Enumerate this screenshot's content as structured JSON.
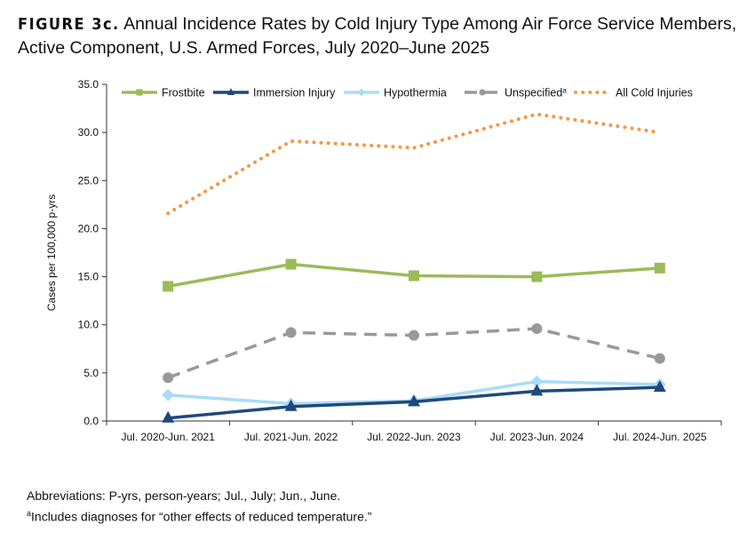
{
  "title": {
    "figure_label": "FIGURE 3c.",
    "text": "Annual Incidence Rates by Cold Injury Type Among Air Force Service Members, Active Component, U.S. Armed Forces, July 2020–June 2025"
  },
  "chart_data": {
    "type": "line",
    "ylabel": "Cases per 100,000 p-yrs",
    "xlabel": "",
    "ylim": [
      0,
      35
    ],
    "yticks": [
      "0.0",
      "5.0",
      "10.0",
      "15.0",
      "20.0",
      "25.0",
      "30.0",
      "35.0"
    ],
    "grid": false,
    "legend_placement": "top",
    "categories": [
      "Jul. 2020-Jun. 2021",
      "Jul. 2021-Jun. 2022",
      "Jul. 2022-Jun. 2023",
      "Jul. 2023-Jun. 2024",
      "Jul. 2024-Jun. 2025"
    ],
    "series": [
      {
        "name": "Frostbite",
        "color": "#9bbb59",
        "marker": "square",
        "dash": "solid",
        "values": [
          14.0,
          16.3,
          15.1,
          15.0,
          15.9
        ]
      },
      {
        "name": "Immersion Injury",
        "color": "#1f497d",
        "marker": "triangle",
        "dash": "solid",
        "values": [
          0.3,
          1.5,
          2.0,
          3.1,
          3.5
        ]
      },
      {
        "name": "Hypothermia",
        "color": "#a9dcf7",
        "marker": "diamond",
        "dash": "solid",
        "values": [
          2.7,
          1.8,
          2.1,
          4.1,
          3.8
        ]
      },
      {
        "name": "Unspecified",
        "name_superscript": "a",
        "color": "#999999",
        "marker": "circle",
        "dash": "dashed",
        "values": [
          4.5,
          9.2,
          8.9,
          9.6,
          6.5
        ]
      },
      {
        "name": "All Cold Injuries",
        "color": "#f79646",
        "marker": "none",
        "dash": "dotted",
        "values": [
          21.6,
          29.1,
          28.4,
          31.9,
          30.0
        ]
      }
    ]
  },
  "notes": {
    "abbreviations": "Abbreviations: P-yrs, person-years; Jul., July; Jun., June.",
    "footnote_marker": "a",
    "footnote": "Includes diagnoses for “other effects of reduced temperature.”"
  }
}
